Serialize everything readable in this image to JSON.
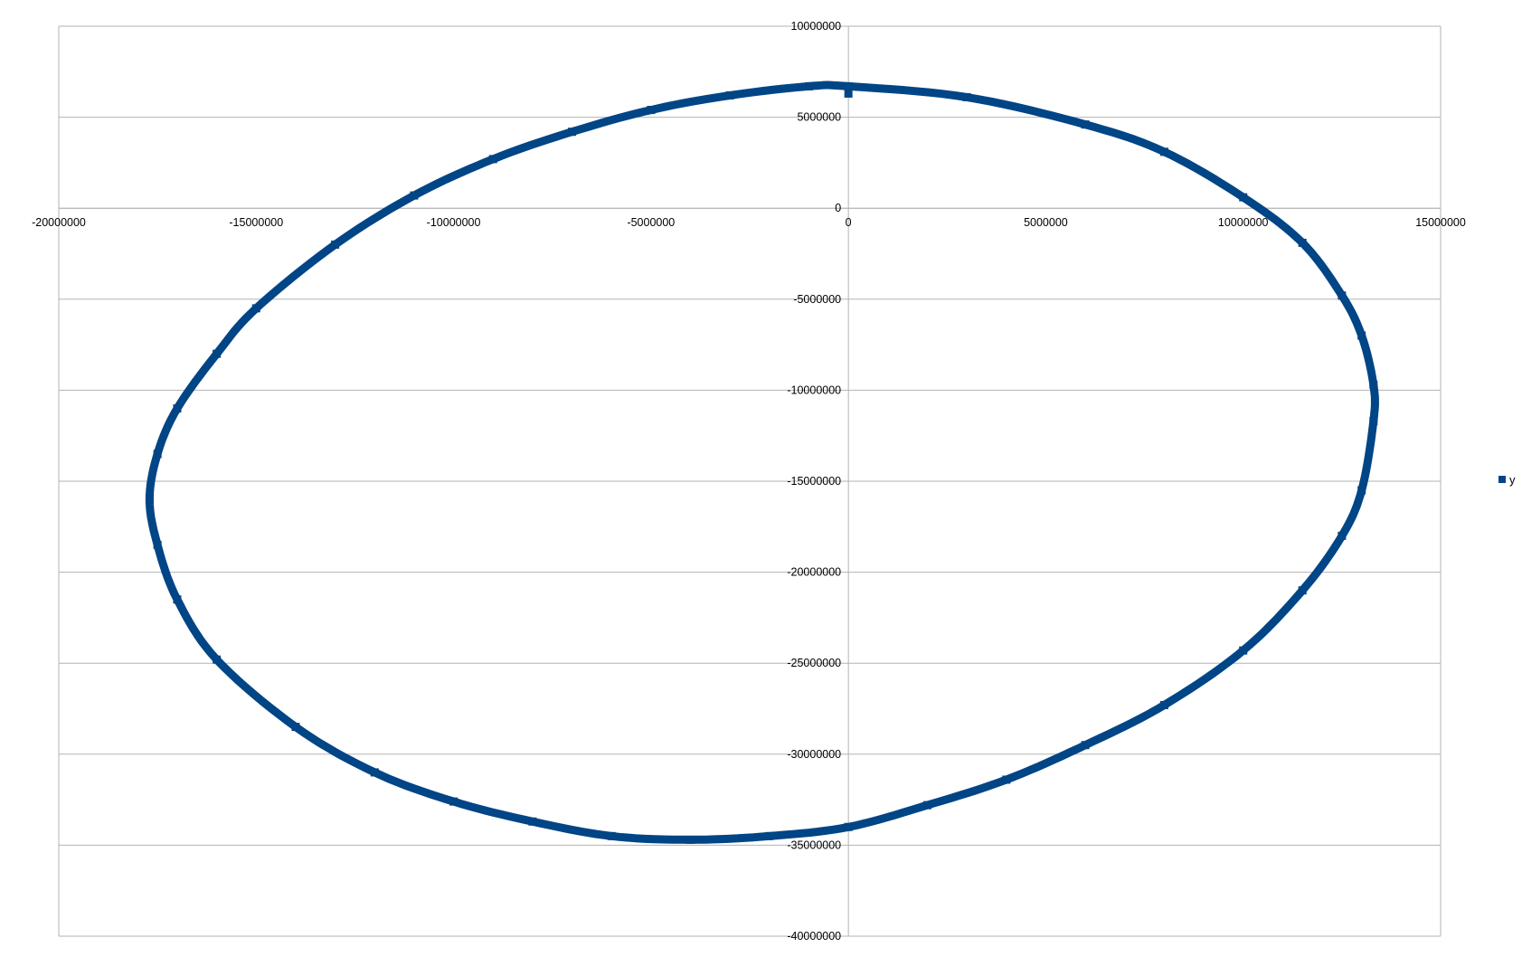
{
  "chart_data": {
    "type": "scatter",
    "title": "",
    "xlabel": "",
    "ylabel": "",
    "xlim": [
      -20000000,
      15000000
    ],
    "ylim": [
      -40000000,
      10000000
    ],
    "x_ticks": [
      -20000000,
      -15000000,
      -10000000,
      -5000000,
      0,
      5000000,
      10000000,
      15000000
    ],
    "x_tick_labels": [
      "-20000000",
      "-15000000",
      "-10000000",
      "-5000000",
      "0",
      "5000000",
      "10000000",
      "15000000"
    ],
    "y_ticks": [
      10000000,
      5000000,
      0,
      -5000000,
      -10000000,
      -15000000,
      -20000000,
      -25000000,
      -30000000,
      -35000000,
      -40000000
    ],
    "y_tick_labels": [
      "10000000",
      "5000000",
      "0",
      "-5000000",
      "-10000000",
      "-15000000",
      "-20000000",
      "-25000000",
      "-30000000",
      "-35000000",
      "-40000000"
    ],
    "grid": "horizontal major gridlines",
    "legend_position": "right",
    "series": [
      {
        "name": "y",
        "color": "#004586",
        "marker": "square",
        "points": [
          [
            0,
            6300000
          ],
          [
            0,
            6700000
          ],
          [
            3000000,
            6100000
          ],
          [
            6000000,
            4600000
          ],
          [
            8000000,
            3100000
          ],
          [
            10000000,
            600000
          ],
          [
            11500000,
            -1900000
          ],
          [
            12500000,
            -4800000
          ],
          [
            13000000,
            -7000000
          ],
          [
            13300000,
            -9700000
          ],
          [
            13300000,
            -11700000
          ],
          [
            13000000,
            -15500000
          ],
          [
            12500000,
            -18000000
          ],
          [
            11500000,
            -21000000
          ],
          [
            10000000,
            -24300000
          ],
          [
            8000000,
            -27300000
          ],
          [
            6000000,
            -29500000
          ],
          [
            4000000,
            -31400000
          ],
          [
            2000000,
            -32800000
          ],
          [
            0,
            -34000000
          ],
          [
            -2000000,
            -34500000
          ],
          [
            -4000000,
            -34700000
          ],
          [
            -6000000,
            -34500000
          ],
          [
            -8000000,
            -33700000
          ],
          [
            -10000000,
            -32600000
          ],
          [
            -12000000,
            -31000000
          ],
          [
            -14000000,
            -28500000
          ],
          [
            -16000000,
            -24800000
          ],
          [
            -17000000,
            -21500000
          ],
          [
            -17500000,
            -18500000
          ],
          [
            -17700000,
            -16000000
          ],
          [
            -17500000,
            -13500000
          ],
          [
            -17000000,
            -11000000
          ],
          [
            -16000000,
            -8000000
          ],
          [
            -15000000,
            -5500000
          ],
          [
            -13000000,
            -2000000
          ],
          [
            -11000000,
            700000
          ],
          [
            -9000000,
            2700000
          ],
          [
            -7000000,
            4200000
          ],
          [
            -5000000,
            5400000
          ],
          [
            -3000000,
            6200000
          ],
          [
            -1000000,
            6700000
          ]
        ]
      }
    ]
  }
}
